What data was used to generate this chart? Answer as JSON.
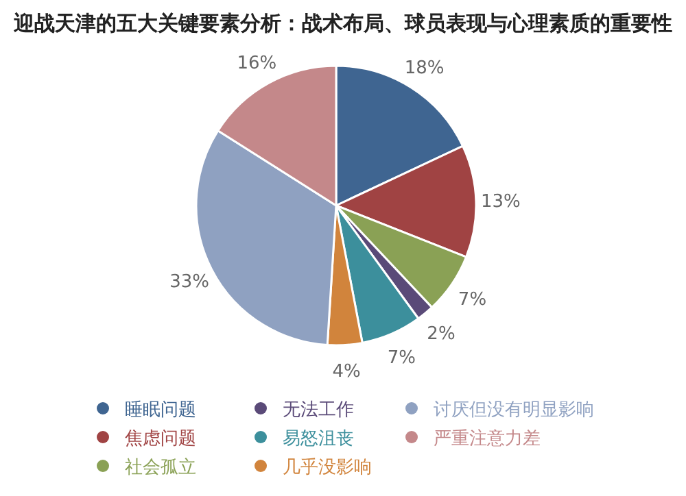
{
  "chart_data": {
    "type": "pie",
    "title": "迎战天津的五大关键要素分析：战术布局、球员表现与心理素质的重要性",
    "categories": [
      "睡眠问题",
      "焦虑问题",
      "社会孤立",
      "无法工作",
      "易怒沮丧",
      "几乎没影响",
      "讨厌但没有明显影响",
      "严重注意力差"
    ],
    "values": [
      18,
      13,
      7,
      2,
      7,
      4,
      33,
      16
    ],
    "value_labels": [
      "18%",
      "13%",
      "7%",
      "2%",
      "7%",
      "4%",
      "33%",
      "16%"
    ],
    "colors": [
      "#3f6591",
      "#a04343",
      "#8aa155",
      "#5a4a78",
      "#3c8f9c",
      "#d1843c",
      "#8fa1c1",
      "#c4888a"
    ],
    "legend": "bottom"
  }
}
